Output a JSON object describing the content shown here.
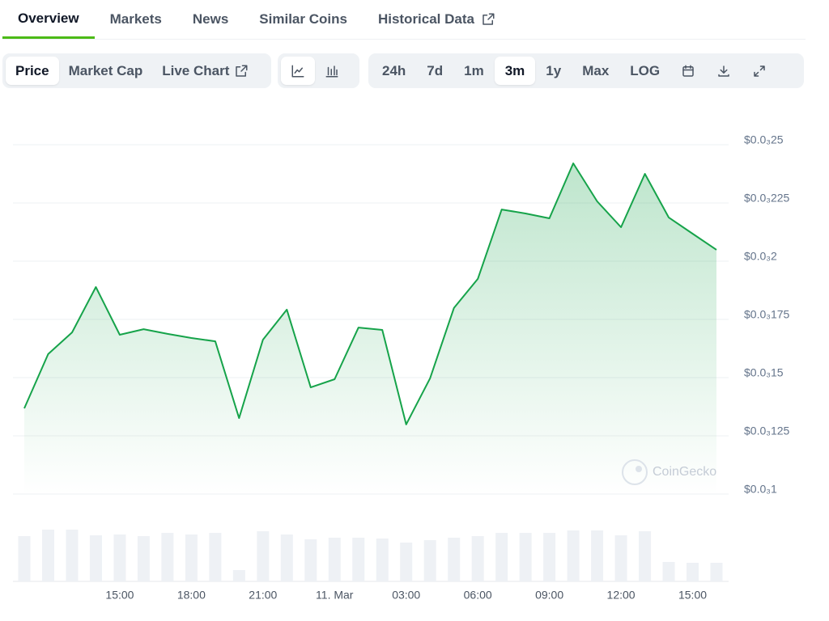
{
  "tabs": {
    "items": [
      "Overview",
      "Markets",
      "News",
      "Similar Coins",
      "Historical Data"
    ],
    "active": 0
  },
  "chart_controls": {
    "metrics": [
      "Price",
      "Market Cap",
      "Live Chart"
    ],
    "active_metric": 0,
    "ranges": [
      "24h",
      "7d",
      "1m",
      "3m",
      "1y",
      "Max",
      "LOG"
    ],
    "active_range": 3
  },
  "chart_data": {
    "type": "area",
    "color": "#16a34a",
    "watermark": "CoinGecko",
    "x": [
      -13,
      -12,
      -11,
      -10,
      -9,
      -8,
      -7,
      -6,
      -5,
      -4,
      -3,
      -2,
      -1,
      0,
      1,
      2,
      3,
      4,
      5,
      6,
      7,
      8,
      9,
      10,
      11,
      12,
      13,
      14,
      15,
      16
    ],
    "values": [
      0.0001368,
      0.0001601,
      0.0001694,
      0.0001889,
      0.0001684,
      0.0001708,
      0.0001688,
      0.000167,
      0.0001656,
      0.0001326,
      0.0001663,
      0.0001792,
      0.0001458,
      0.0001493,
      0.0001715,
      0.0001705,
      0.0001299,
      0.0001497,
      0.0001799,
      0.0001924,
      0.0002222,
      0.0002205,
      0.0002184,
      0.000242,
      0.0002257,
      0.0002146,
      0.0002375,
      0.0002188,
      0.0002118,
      0.0002049
    ],
    "volume": [
      56,
      64,
      64,
      57,
      58,
      56,
      60,
      58,
      60,
      14,
      62,
      58,
      52,
      54,
      54,
      53,
      48,
      51,
      54,
      56,
      60,
      60,
      60,
      63,
      63,
      57,
      62,
      24,
      23,
      23
    ],
    "xlim": [
      -13,
      16
    ],
    "xticks": [
      {
        "value": -9,
        "label": "15:00"
      },
      {
        "value": -6,
        "label": "18:00"
      },
      {
        "value": -3,
        "label": "21:00"
      },
      {
        "value": 0,
        "label": "11. Mar"
      },
      {
        "value": 3,
        "label": "03:00"
      },
      {
        "value": 6,
        "label": "06:00"
      },
      {
        "value": 9,
        "label": "09:00"
      },
      {
        "value": 12,
        "label": "12:00"
      },
      {
        "value": 15,
        "label": "15:00"
      }
    ],
    "ylim": [
      0.0001,
      0.00025
    ],
    "yticks": [
      {
        "value": 0.0001,
        "label": "$0.0₃1"
      },
      {
        "value": 0.000125,
        "label": "$0.0₃125"
      },
      {
        "value": 0.00015,
        "label": "$0.0₃15"
      },
      {
        "value": 0.000175,
        "label": "$0.0₃175"
      },
      {
        "value": 0.0002,
        "label": "$0.0₃2"
      },
      {
        "value": 0.000225,
        "label": "$0.0₃225"
      },
      {
        "value": 0.00025,
        "label": "$0.0₃25"
      }
    ],
    "grid": true
  }
}
